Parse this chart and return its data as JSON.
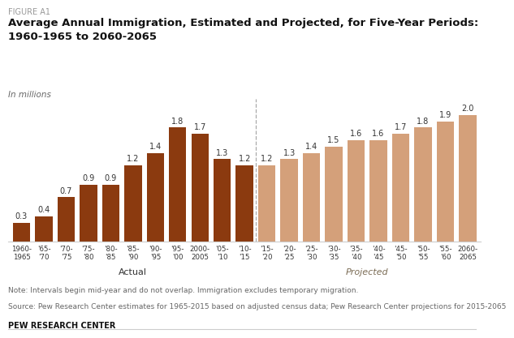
{
  "figure_label": "FIGURE A1",
  "title": "Average Annual Immigration, Estimated and Projected, for Five-Year Periods:\n1960-1965 to 2060-2065",
  "subtitle": "In millions",
  "categories": [
    "1960-\n1965",
    "'65-\n'70",
    "'70-\n'75",
    "'75-\n'80",
    "'80-\n'85",
    "'85-\n'90",
    "'90-\n'95",
    "'95-\n'00",
    "2000-\n2005",
    "'05-\n'10",
    "'10-\n'15",
    "'15-\n'20",
    "'20-\n'25",
    "'25-\n'30",
    "'30-\n'35",
    "'35-\n'40",
    "'40-\n'45",
    "'45-\n'50",
    "'50-\n'55",
    "'55-\n'60",
    "2060-\n2065"
  ],
  "values": [
    0.3,
    0.4,
    0.7,
    0.9,
    0.9,
    1.2,
    1.4,
    1.8,
    1.7,
    1.3,
    1.2,
    1.2,
    1.3,
    1.4,
    1.5,
    1.6,
    1.6,
    1.7,
    1.8,
    1.9,
    2.0
  ],
  "actual_color": "#8B3A0F",
  "projected_color": "#D4A07A",
  "n_actual": 11,
  "actual_label": "Actual",
  "projected_label": "Projected",
  "note": "Note: Intervals begin mid-year and do not overlap. Immigration excludes temporary migration.",
  "source": "Source: Pew Research Center estimates for 1965-2015 based on adjusted census data; Pew Research Center projections for 2015-2065",
  "pew_label": "PEW RESEARCH CENTER",
  "ylim": [
    0,
    2.25
  ],
  "background_color": "#ffffff",
  "divider_color": "#aaaaaa",
  "spine_color": "#cccccc",
  "label_color": "#333333",
  "note_color": "#666666",
  "projected_label_color": "#7B6C55"
}
